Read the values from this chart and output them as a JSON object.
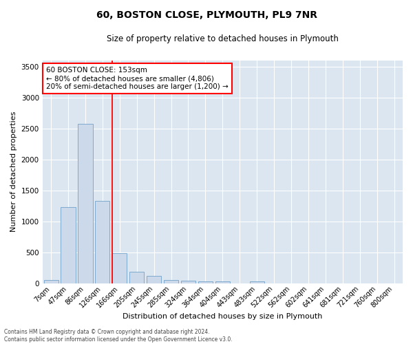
{
  "title": "60, BOSTON CLOSE, PLYMOUTH, PL9 7NR",
  "subtitle": "Size of property relative to detached houses in Plymouth",
  "xlabel": "Distribution of detached houses by size in Plymouth",
  "ylabel": "Number of detached properties",
  "bar_color": "#ccd9ea",
  "bar_edge_color": "#7eaace",
  "background_color": "#dce6f1",
  "grid_color": "#ffffff",
  "categories": [
    "7sqm",
    "47sqm",
    "86sqm",
    "126sqm",
    "166sqm",
    "205sqm",
    "245sqm",
    "285sqm",
    "324sqm",
    "364sqm",
    "404sqm",
    "443sqm",
    "483sqm",
    "522sqm",
    "562sqm",
    "602sqm",
    "641sqm",
    "681sqm",
    "721sqm",
    "760sqm",
    "800sqm"
  ],
  "values": [
    50,
    1230,
    2580,
    1330,
    490,
    190,
    115,
    50,
    40,
    35,
    30,
    0,
    30,
    0,
    0,
    0,
    0,
    0,
    0,
    0,
    0
  ],
  "red_line_index": 4,
  "annotation_text": "60 BOSTON CLOSE: 153sqm\n← 80% of detached houses are smaller (4,806)\n20% of semi-detached houses are larger (1,200) →",
  "ylim": [
    0,
    3600
  ],
  "yticks": [
    0,
    500,
    1000,
    1500,
    2000,
    2500,
    3000,
    3500
  ],
  "footnote": "Contains HM Land Registry data © Crown copyright and database right 2024.\nContains public sector information licensed under the Open Government Licence v3.0.",
  "fig_width": 6.0,
  "fig_height": 5.0,
  "dpi": 100
}
